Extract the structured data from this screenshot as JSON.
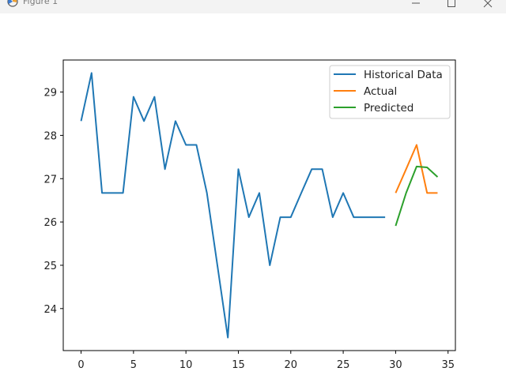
{
  "window": {
    "title": "Figure 1",
    "app_icon": "matplotlib-figure-icon",
    "controls": [
      "minimize-icon",
      "maximize-icon",
      "close-icon"
    ]
  },
  "chart_data": {
    "type": "line",
    "title": "",
    "xlabel": "",
    "ylabel": "",
    "xlim": [
      -1.7,
      35.7
    ],
    "ylim": [
      23.03,
      29.74
    ],
    "xticks": [
      0,
      5,
      10,
      15,
      20,
      25,
      30,
      35
    ],
    "yticks": [
      24,
      25,
      26,
      27,
      28,
      29
    ],
    "grid": false,
    "legend_position": "upper right",
    "series": [
      {
        "name": "Historical Data",
        "color": "#1f77b4",
        "x": [
          0,
          1,
          2,
          3,
          4,
          5,
          6,
          7,
          8,
          9,
          10,
          11,
          12,
          13,
          14,
          15,
          16,
          17,
          18,
          19,
          20,
          21,
          22,
          23,
          24,
          25,
          26,
          27,
          28,
          29
        ],
        "y": [
          28.33,
          29.44,
          26.67,
          26.67,
          26.67,
          28.89,
          28.33,
          28.89,
          27.22,
          28.33,
          27.78,
          27.78,
          26.67,
          25.0,
          23.33,
          27.22,
          26.11,
          26.67,
          25.0,
          26.11,
          26.11,
          26.67,
          27.22,
          27.22,
          26.11,
          26.67,
          26.11,
          26.11,
          26.11,
          26.11
        ]
      },
      {
        "name": "Actual",
        "color": "#ff7f0e",
        "x": [
          30,
          31,
          32,
          33,
          34
        ],
        "y": [
          26.67,
          27.22,
          27.78,
          26.67,
          26.67
        ]
      },
      {
        "name": "Predicted",
        "color": "#2ca02c",
        "x": [
          30,
          31,
          32,
          33,
          34
        ],
        "y": [
          25.91,
          26.67,
          27.28,
          27.26,
          27.04
        ]
      }
    ]
  }
}
